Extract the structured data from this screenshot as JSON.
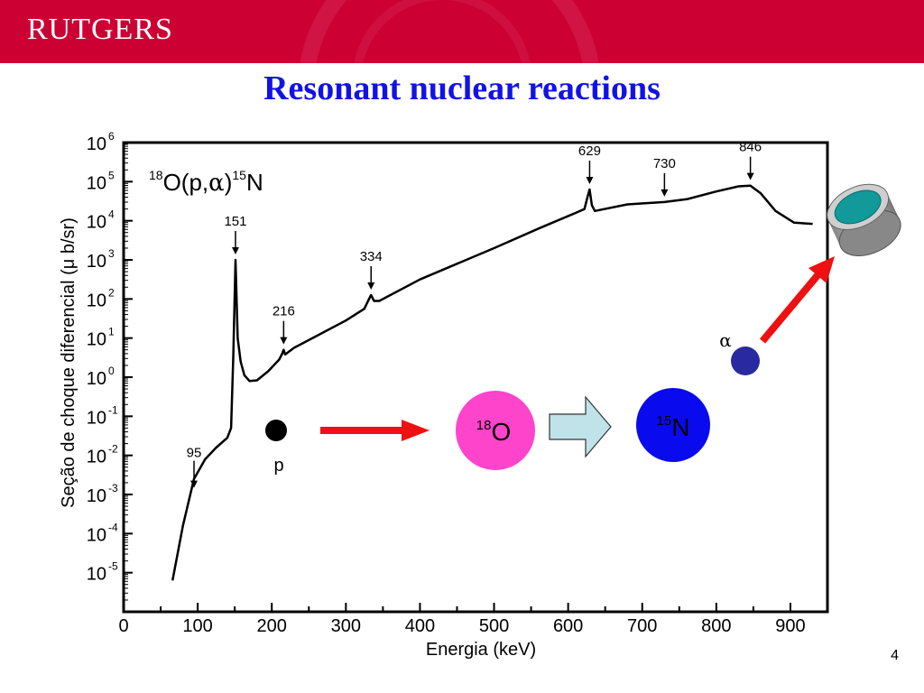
{
  "header": {
    "brand": "RUTGERS",
    "title": "Resonant nuclear reactions"
  },
  "page_number": "4",
  "colors": {
    "banner": "#cc0033",
    "title": "#1212e6",
    "arrow": "#ee1111",
    "proton": "#000000",
    "o18": "#ff44cc",
    "n15": "#0a0aee",
    "alpha": "#2a2aa0",
    "block_arrow": "#bfe3e8",
    "detector_face": "#129999",
    "detector_body": "#999999"
  },
  "chart_data": {
    "type": "line",
    "title": "",
    "xlabel": "Energia (keV)",
    "ylabel": "Seção de choque diferencial (μ b/sr)",
    "xlim": [
      0,
      950
    ],
    "ylim_exponent": [
      -6,
      6
    ],
    "yscale": "log",
    "x_ticks": [
      "0",
      "100",
      "200",
      "300",
      "400",
      "500",
      "600",
      "700",
      "800",
      "900"
    ],
    "y_ticks": [
      {
        "base": "10",
        "exp": "6"
      },
      {
        "base": "10",
        "exp": "5"
      },
      {
        "base": "10",
        "exp": "4"
      },
      {
        "base": "10",
        "exp": "3"
      },
      {
        "base": "10",
        "exp": "2"
      },
      {
        "base": "10",
        "exp": "1"
      },
      {
        "base": "10",
        "exp": "0"
      },
      {
        "base": "10",
        "exp": "-1"
      },
      {
        "base": "10",
        "exp": "-2"
      },
      {
        "base": "10",
        "exp": "-3"
      },
      {
        "base": "10",
        "exp": "-4"
      },
      {
        "base": "10",
        "exp": "-5"
      }
    ],
    "reaction": {
      "sup1": "18",
      "main": "O(p,",
      "greek": "α",
      "close": ")",
      "sup2": "15",
      "product": "N"
    },
    "series": [
      {
        "points": [
          [
            66,
            -5.2
          ],
          [
            80,
            -3.8
          ],
          [
            95,
            -2.6
          ],
          [
            110,
            -2.1
          ],
          [
            125,
            -1.8
          ],
          [
            140,
            -1.55
          ],
          [
            145,
            -1.3
          ],
          [
            148,
            0.5
          ],
          [
            151,
            3.0
          ],
          [
            154,
            1.0
          ],
          [
            158,
            0.4
          ],
          [
            163,
            0.05
          ],
          [
            170,
            -0.1
          ],
          [
            180,
            -0.08
          ],
          [
            195,
            0.15
          ],
          [
            210,
            0.45
          ],
          [
            214,
            0.6
          ],
          [
            216,
            0.7
          ],
          [
            218,
            0.58
          ],
          [
            230,
            0.75
          ],
          [
            260,
            1.05
          ],
          [
            300,
            1.45
          ],
          [
            325,
            1.75
          ],
          [
            330,
            1.95
          ],
          [
            334,
            2.1
          ],
          [
            338,
            1.95
          ],
          [
            345,
            1.95
          ],
          [
            400,
            2.5
          ],
          [
            500,
            3.3
          ],
          [
            560,
            3.8
          ],
          [
            610,
            4.2
          ],
          [
            622,
            4.3
          ],
          [
            626,
            4.6
          ],
          [
            629,
            4.8
          ],
          [
            632,
            4.4
          ],
          [
            636,
            4.25
          ],
          [
            680,
            4.42
          ],
          [
            730,
            4.48
          ],
          [
            760,
            4.55
          ],
          [
            800,
            4.75
          ],
          [
            830,
            4.88
          ],
          [
            846,
            4.9
          ],
          [
            860,
            4.7
          ],
          [
            880,
            4.25
          ],
          [
            905,
            3.95
          ],
          [
            930,
            3.92
          ]
        ]
      }
    ],
    "annotations": [
      {
        "label": "95",
        "x": 95,
        "y": -2.6
      },
      {
        "label": "151",
        "x": 151,
        "y": 3.0
      },
      {
        "label": "216",
        "x": 216,
        "y": 0.7
      },
      {
        "label": "334",
        "x": 334,
        "y": 2.1
      },
      {
        "label": "629",
        "x": 629,
        "y": 4.8
      },
      {
        "label": "730",
        "x": 730,
        "y": 4.48
      },
      {
        "label": "846",
        "x": 846,
        "y": 4.9
      }
    ]
  },
  "diagram": {
    "proton_label": "p",
    "alpha_label": "α",
    "o18": {
      "sup": "18",
      "label": "O"
    },
    "n15": {
      "sup": "15",
      "label": "N"
    }
  }
}
